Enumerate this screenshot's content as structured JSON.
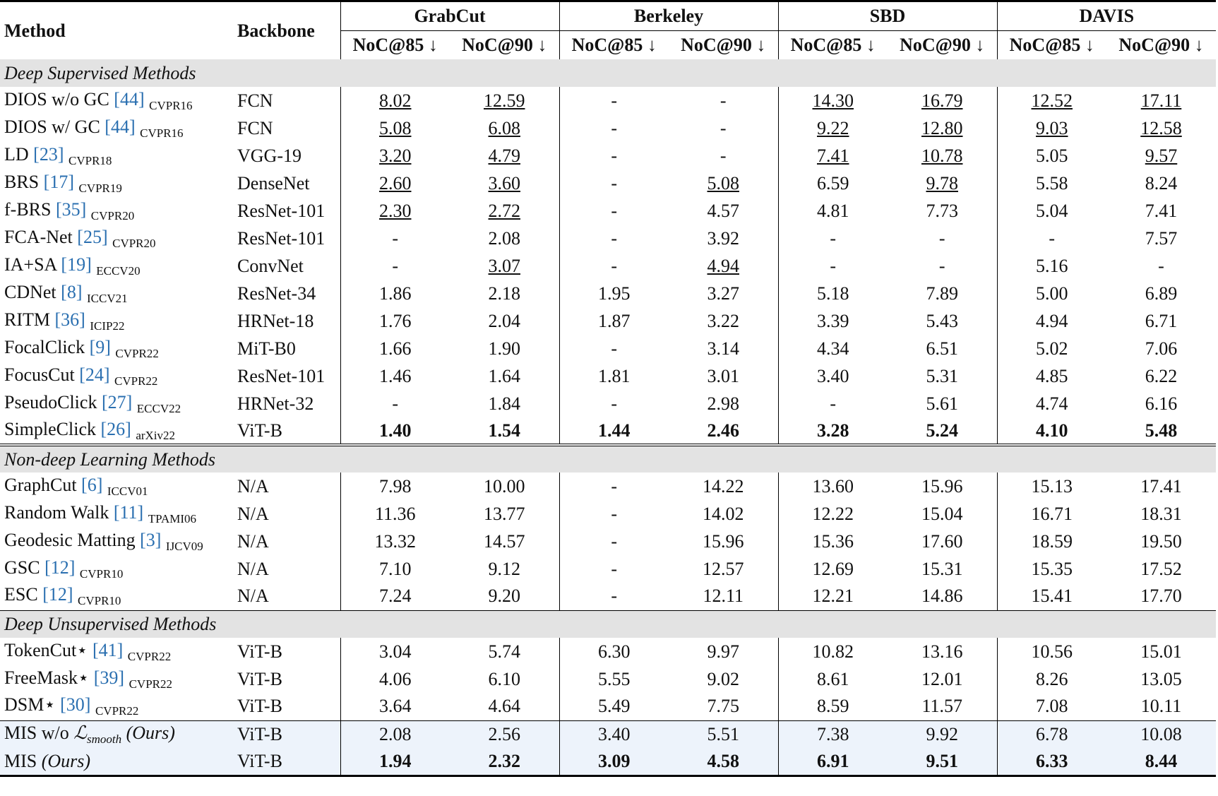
{
  "header": {
    "method": "Method",
    "backbone": "Backbone",
    "groups": [
      "GrabCut",
      "Berkeley",
      "SBD",
      "DAVIS"
    ],
    "metrics": [
      "NoC@85 ↓",
      "NoC@90 ↓",
      "NoC@85 ↓",
      "NoC@90 ↓",
      "NoC@85 ↓",
      "NoC@90 ↓",
      "NoC@85 ↓",
      "NoC@90 ↓"
    ]
  },
  "sections": [
    {
      "title": "Deep Supervised Methods",
      "rows": [
        {
          "name": "DIOS w/o GC",
          "ref": "[44]",
          "venue": "CVPR16",
          "backbone": "FCN",
          "values": [
            "8.02",
            "12.59",
            "-",
            "-",
            "14.30",
            "16.79",
            "12.52",
            "17.11"
          ],
          "underline": [
            0,
            1,
            4,
            5,
            6,
            7
          ]
        },
        {
          "name": "DIOS w/ GC",
          "ref": "[44]",
          "venue": "CVPR16",
          "backbone": "FCN",
          "values": [
            "5.08",
            "6.08",
            "-",
            "-",
            "9.22",
            "12.80",
            "9.03",
            "12.58"
          ],
          "underline": [
            0,
            1,
            4,
            5,
            6,
            7
          ]
        },
        {
          "name": "LD",
          "ref": "[23]",
          "venue": "CVPR18",
          "backbone": "VGG-19",
          "values": [
            "3.20",
            "4.79",
            "-",
            "-",
            "7.41",
            "10.78",
            "5.05",
            "9.57"
          ],
          "underline": [
            0,
            1,
            4,
            5,
            7
          ]
        },
        {
          "name": "BRS",
          "ref": "[17]",
          "venue": "CVPR19",
          "backbone": "DenseNet",
          "values": [
            "2.60",
            "3.60",
            "-",
            "5.08",
            "6.59",
            "9.78",
            "5.58",
            "8.24"
          ],
          "underline": [
            0,
            1,
            3,
            5
          ]
        },
        {
          "name": "f-BRS",
          "ref": "[35]",
          "venue": "CVPR20",
          "backbone": "ResNet-101",
          "values": [
            "2.30",
            "2.72",
            "-",
            "4.57",
            "4.81",
            "7.73",
            "5.04",
            "7.41"
          ],
          "underline": [
            0,
            1
          ]
        },
        {
          "name": "FCA-Net",
          "ref": "[25]",
          "venue": "CVPR20",
          "backbone": "ResNet-101",
          "values": [
            "-",
            "2.08",
            "-",
            "3.92",
            "-",
            "-",
            "-",
            "7.57"
          ]
        },
        {
          "name": "IA+SA",
          "ref": "[19]",
          "venue": "ECCV20",
          "backbone": "ConvNet",
          "values": [
            "-",
            "3.07",
            "-",
            "4.94",
            "-",
            "-",
            "5.16",
            "-"
          ],
          "underline": [
            1,
            3
          ]
        },
        {
          "name": "CDNet",
          "ref": "[8]",
          "venue": "ICCV21",
          "backbone": "ResNet-34",
          "values": [
            "1.86",
            "2.18",
            "1.95",
            "3.27",
            "5.18",
            "7.89",
            "5.00",
            "6.89"
          ]
        },
        {
          "name": "RITM",
          "ref": "[36]",
          "venue": "ICIP22",
          "backbone": "HRNet-18",
          "values": [
            "1.76",
            "2.04",
            "1.87",
            "3.22",
            "3.39",
            "5.43",
            "4.94",
            "6.71"
          ]
        },
        {
          "name": "FocalClick",
          "ref": "[9]",
          "venue": "CVPR22",
          "backbone": "MiT-B0",
          "values": [
            "1.66",
            "1.90",
            "-",
            "3.14",
            "4.34",
            "6.51",
            "5.02",
            "7.06"
          ]
        },
        {
          "name": "FocusCut",
          "ref": "[24]",
          "venue": "CVPR22",
          "backbone": "ResNet-101",
          "values": [
            "1.46",
            "1.64",
            "1.81",
            "3.01",
            "3.40",
            "5.31",
            "4.85",
            "6.22"
          ]
        },
        {
          "name": "PseudoClick",
          "ref": "[27]",
          "venue": "ECCV22",
          "backbone": "HRNet-32",
          "values": [
            "-",
            "1.84",
            "-",
            "2.98",
            "-",
            "5.61",
            "4.74",
            "6.16"
          ]
        },
        {
          "name": "SimpleClick",
          "ref": "[26]",
          "venue": "arXiv22",
          "backbone": "ViT-B",
          "values": [
            "1.40",
            "1.54",
            "1.44",
            "2.46",
            "3.28",
            "5.24",
            "4.10",
            "5.48"
          ],
          "bold": true
        }
      ]
    },
    {
      "title": "Non-deep Learning Methods",
      "rows": [
        {
          "name": "GraphCut",
          "ref": "[6]",
          "venue": "ICCV01",
          "backbone": "N/A",
          "values": [
            "7.98",
            "10.00",
            "-",
            "14.22",
            "13.60",
            "15.96",
            "15.13",
            "17.41"
          ]
        },
        {
          "name": "Random Walk",
          "ref": "[11]",
          "venue": "TPAMI06",
          "backbone": "N/A",
          "values": [
            "11.36",
            "13.77",
            "-",
            "14.02",
            "12.22",
            "15.04",
            "16.71",
            "18.31"
          ]
        },
        {
          "name": "Geodesic Matting",
          "ref": "[3]",
          "venue": "IJCV09",
          "backbone": "N/A",
          "values": [
            "13.32",
            "14.57",
            "-",
            "15.96",
            "15.36",
            "17.60",
            "18.59",
            "19.50"
          ]
        },
        {
          "name": "GSC",
          "ref": "[12]",
          "venue": "CVPR10",
          "backbone": "N/A",
          "values": [
            "7.10",
            "9.12",
            "-",
            "12.57",
            "12.69",
            "15.31",
            "15.35",
            "17.52"
          ]
        },
        {
          "name": "ESC",
          "ref": "[12]",
          "venue": "CVPR10",
          "backbone": "N/A",
          "values": [
            "7.24",
            "9.20",
            "-",
            "12.11",
            "12.21",
            "14.86",
            "15.41",
            "17.70"
          ]
        }
      ]
    },
    {
      "title": "Deep Unsupervised Methods",
      "rows": [
        {
          "name": "TokenCut⋆",
          "ref": "[41]",
          "venue": "CVPR22",
          "backbone": "ViT-B",
          "values": [
            "3.04",
            "5.74",
            "6.30",
            "9.97",
            "10.82",
            "13.16",
            "10.56",
            "15.01"
          ]
        },
        {
          "name": "FreeMask⋆",
          "ref": "[39]",
          "venue": "CVPR22",
          "backbone": "ViT-B",
          "values": [
            "4.06",
            "6.10",
            "5.55",
            "9.02",
            "8.61",
            "12.01",
            "8.26",
            "13.05"
          ]
        },
        {
          "name": "DSM⋆",
          "ref": "[30]",
          "venue": "CVPR22",
          "backbone": "ViT-B",
          "values": [
            "3.64",
            "4.64",
            "5.49",
            "7.75",
            "8.59",
            "11.57",
            "7.08",
            "10.11"
          ]
        }
      ]
    },
    {
      "highlight": true,
      "rows": [
        {
          "name": "MIS w/o",
          "loss": "ℒ",
          "loss_sub": "smooth",
          "note": "(Ours)",
          "backbone": "ViT-B",
          "values": [
            "2.08",
            "2.56",
            "3.40",
            "5.51",
            "7.38",
            "9.92",
            "6.78",
            "10.08"
          ]
        },
        {
          "name": "MIS",
          "note": "(Ours)",
          "backbone": "ViT-B",
          "values": [
            "1.94",
            "2.32",
            "3.09",
            "4.58",
            "6.91",
            "9.51",
            "6.33",
            "8.44"
          ],
          "bold": true
        }
      ]
    }
  ]
}
